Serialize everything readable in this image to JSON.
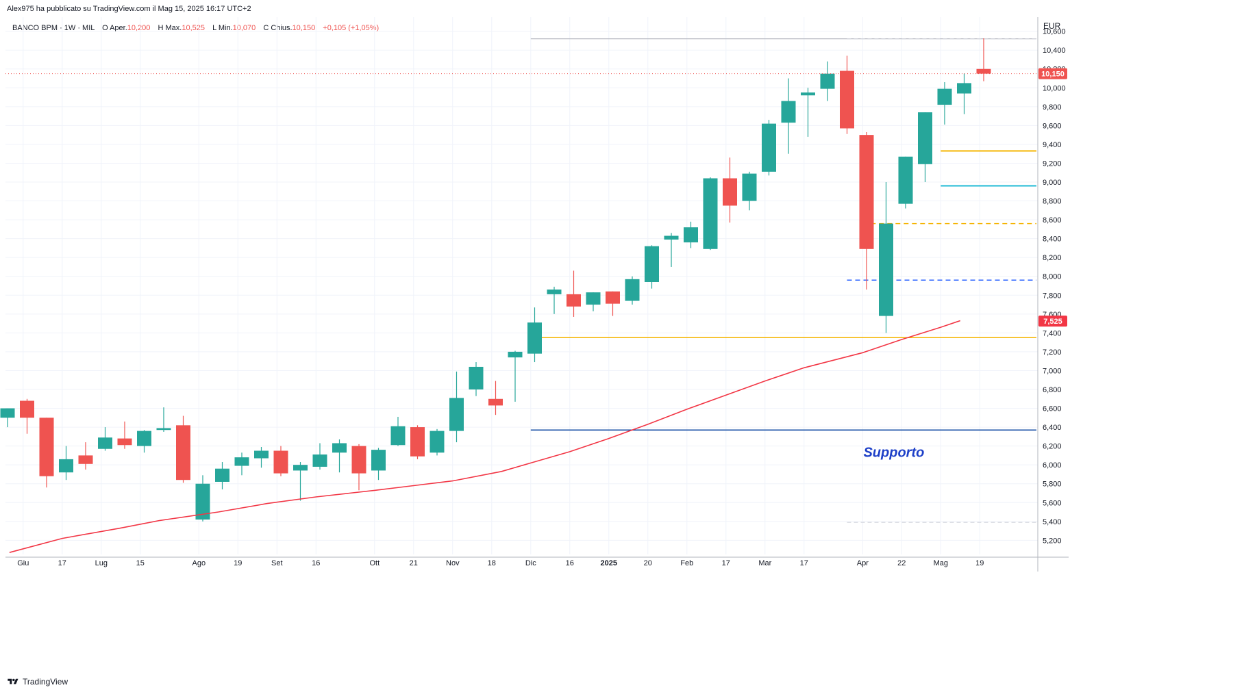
{
  "publication": "Alex975 ha pubblicato su TradingView.com il Mag 15, 2025 16:17 UTC+2",
  "legend": {
    "symbol": "BANCO BPM · 1W · MIL",
    "open_label": "O",
    "open_text": "Aper.",
    "open": "10,200",
    "high_label": "H",
    "high_text": "Max.",
    "high": "10,525",
    "low_label": "L",
    "low_text": "Min.",
    "low": "10,070",
    "close_label": "C",
    "close_text": "Chius.",
    "close": "10,150",
    "change": "+0,105 (+1,05%)"
  },
  "footer": {
    "brand": "TradingView"
  },
  "colors": {
    "up": "#26a69a",
    "down": "#ef5350",
    "ma": "#f23645",
    "grid": "#f0f3fa"
  },
  "chart_data": {
    "type": "candlestick",
    "currency": "EUR",
    "ylim": [
      5.05,
      10.75
    ],
    "y_ticks": [
      5.2,
      5.4,
      5.6,
      5.8,
      6.0,
      6.2,
      6.4,
      6.6,
      6.8,
      7.0,
      7.2,
      7.4,
      7.6,
      7.8,
      8.0,
      8.2,
      8.4,
      8.6,
      8.8,
      9.0,
      9.2,
      9.4,
      9.6,
      9.8,
      10.0,
      10.2,
      10.4,
      10.6
    ],
    "y_tick_labels": [
      "5,200",
      "5,400",
      "5,600",
      "5,800",
      "6,000",
      "6,200",
      "6,400",
      "6,600",
      "6,800",
      "7,000",
      "7,200",
      "7,400",
      "7,600",
      "7,800",
      "8,000",
      "8,200",
      "8,400",
      "8,600",
      "8,800",
      "9,000",
      "9,200",
      "9,400",
      "9,600",
      "9,800",
      "10,000",
      "10,200",
      "10,400",
      "10,600"
    ],
    "x_ticks": [
      {
        "i": 0.8,
        "label": "Giu"
      },
      {
        "i": 2.8,
        "label": "17"
      },
      {
        "i": 4.8,
        "label": "Lug"
      },
      {
        "i": 6.8,
        "label": "15"
      },
      {
        "i": 9.8,
        "label": "Ago"
      },
      {
        "i": 11.8,
        "label": "19"
      },
      {
        "i": 13.8,
        "label": "Set"
      },
      {
        "i": 15.8,
        "label": "16"
      },
      {
        "i": 18.8,
        "label": "Ott"
      },
      {
        "i": 20.8,
        "label": "21"
      },
      {
        "i": 22.8,
        "label": "Nov"
      },
      {
        "i": 24.8,
        "label": "18"
      },
      {
        "i": 26.8,
        "label": "Dic"
      },
      {
        "i": 28.8,
        "label": "16"
      },
      {
        "i": 30.8,
        "label": "2025",
        "bold": true
      },
      {
        "i": 32.8,
        "label": "20"
      },
      {
        "i": 34.8,
        "label": "Feb"
      },
      {
        "i": 36.8,
        "label": "17"
      },
      {
        "i": 38.8,
        "label": "Mar"
      },
      {
        "i": 40.8,
        "label": "17"
      },
      {
        "i": 43.8,
        "label": "Apr"
      },
      {
        "i": 45.8,
        "label": "22"
      },
      {
        "i": 47.8,
        "label": "Mag"
      },
      {
        "i": 49.8,
        "label": "19"
      }
    ],
    "candles": [
      {
        "o": 6.5,
        "h": 6.6,
        "l": 6.4,
        "c": 6.6
      },
      {
        "o": 6.68,
        "h": 6.7,
        "l": 6.33,
        "c": 6.5
      },
      {
        "o": 6.5,
        "h": 6.5,
        "l": 5.76,
        "c": 5.88
      },
      {
        "o": 5.92,
        "h": 6.2,
        "l": 5.84,
        "c": 6.06
      },
      {
        "o": 6.1,
        "h": 6.24,
        "l": 5.95,
        "c": 6.01
      },
      {
        "o": 6.17,
        "h": 6.4,
        "l": 6.15,
        "c": 6.29
      },
      {
        "o": 6.28,
        "h": 6.46,
        "l": 6.17,
        "c": 6.21
      },
      {
        "o": 6.2,
        "h": 6.37,
        "l": 6.13,
        "c": 6.36
      },
      {
        "o": 6.37,
        "h": 6.61,
        "l": 6.35,
        "c": 6.39
      },
      {
        "o": 6.42,
        "h": 6.52,
        "l": 5.81,
        "c": 5.84
      },
      {
        "o": 5.42,
        "h": 5.89,
        "l": 5.4,
        "c": 5.8
      },
      {
        "o": 5.82,
        "h": 6.03,
        "l": 5.74,
        "c": 5.96
      },
      {
        "o": 5.99,
        "h": 6.13,
        "l": 5.89,
        "c": 6.08
      },
      {
        "o": 6.07,
        "h": 6.19,
        "l": 5.97,
        "c": 6.15
      },
      {
        "o": 6.15,
        "h": 6.2,
        "l": 5.88,
        "c": 5.91
      },
      {
        "o": 5.94,
        "h": 6.03,
        "l": 5.62,
        "c": 6.0
      },
      {
        "o": 5.98,
        "h": 6.23,
        "l": 5.95,
        "c": 6.11
      },
      {
        "o": 6.13,
        "h": 6.27,
        "l": 5.92,
        "c": 6.23
      },
      {
        "o": 6.2,
        "h": 6.22,
        "l": 5.73,
        "c": 5.91
      },
      {
        "o": 5.94,
        "h": 6.18,
        "l": 5.84,
        "c": 6.16
      },
      {
        "o": 6.21,
        "h": 6.51,
        "l": 6.2,
        "c": 6.41
      },
      {
        "o": 6.4,
        "h": 6.42,
        "l": 6.06,
        "c": 6.09
      },
      {
        "o": 6.13,
        "h": 6.38,
        "l": 6.1,
        "c": 6.36
      },
      {
        "o": 6.36,
        "h": 6.99,
        "l": 6.24,
        "c": 6.71
      },
      {
        "o": 6.8,
        "h": 7.09,
        "l": 6.73,
        "c": 7.04
      },
      {
        "o": 6.7,
        "h": 6.89,
        "l": 6.53,
        "c": 6.63
      },
      {
        "o": 7.14,
        "h": 7.21,
        "l": 6.67,
        "c": 7.2
      },
      {
        "o": 7.18,
        "h": 7.67,
        "l": 7.09,
        "c": 7.51
      },
      {
        "o": 7.81,
        "h": 7.89,
        "l": 7.6,
        "c": 7.86
      },
      {
        "o": 7.81,
        "h": 8.06,
        "l": 7.57,
        "c": 7.68
      },
      {
        "o": 7.7,
        "h": 7.83,
        "l": 7.63,
        "c": 7.83
      },
      {
        "o": 7.84,
        "h": 7.84,
        "l": 7.58,
        "c": 7.71
      },
      {
        "o": 7.74,
        "h": 8.0,
        "l": 7.7,
        "c": 7.97
      },
      {
        "o": 7.94,
        "h": 8.33,
        "l": 7.87,
        "c": 8.32
      },
      {
        "o": 8.39,
        "h": 8.46,
        "l": 8.1,
        "c": 8.43
      },
      {
        "o": 8.36,
        "h": 8.58,
        "l": 8.3,
        "c": 8.52
      },
      {
        "o": 8.29,
        "h": 9.05,
        "l": 8.28,
        "c": 9.04
      },
      {
        "o": 9.04,
        "h": 9.26,
        "l": 8.57,
        "c": 8.75
      },
      {
        "o": 8.8,
        "h": 9.11,
        "l": 8.7,
        "c": 9.09
      },
      {
        "o": 9.11,
        "h": 9.66,
        "l": 9.07,
        "c": 9.62
      },
      {
        "o": 9.63,
        "h": 10.1,
        "l": 9.3,
        "c": 9.86
      },
      {
        "o": 9.92,
        "h": 10.0,
        "l": 9.48,
        "c": 9.95
      },
      {
        "o": 9.99,
        "h": 10.28,
        "l": 9.86,
        "c": 10.15
      },
      {
        "o": 10.18,
        "h": 10.34,
        "l": 9.51,
        "c": 9.57
      },
      {
        "o": 9.5,
        "h": 9.53,
        "l": 7.86,
        "c": 8.29
      },
      {
        "o": 7.58,
        "h": 9.0,
        "l": 7.4,
        "c": 8.56
      },
      {
        "o": 8.77,
        "h": 9.27,
        "l": 8.72,
        "c": 9.27
      },
      {
        "o": 9.19,
        "h": 9.74,
        "l": 9.0,
        "c": 9.74
      },
      {
        "o": 9.82,
        "h": 10.06,
        "l": 9.61,
        "c": 9.99
      },
      {
        "o": 9.94,
        "h": 10.15,
        "l": 9.72,
        "c": 10.05
      },
      {
        "o": 10.2,
        "h": 10.525,
        "l": 10.07,
        "c": 10.15
      }
    ],
    "moving_average": [
      {
        "i": 0.1,
        "v": 5.07
      },
      {
        "i": 2.8,
        "v": 5.22
      },
      {
        "i": 5.8,
        "v": 5.33
      },
      {
        "i": 7.8,
        "v": 5.41
      },
      {
        "i": 10.8,
        "v": 5.5
      },
      {
        "i": 13.3,
        "v": 5.59
      },
      {
        "i": 15.8,
        "v": 5.66
      },
      {
        "i": 18.8,
        "v": 5.73
      },
      {
        "i": 20.8,
        "v": 5.78
      },
      {
        "i": 22.8,
        "v": 5.83
      },
      {
        "i": 25.3,
        "v": 5.93
      },
      {
        "i": 26.8,
        "v": 6.02
      },
      {
        "i": 28.8,
        "v": 6.14
      },
      {
        "i": 30.8,
        "v": 6.28
      },
      {
        "i": 32.8,
        "v": 6.43
      },
      {
        "i": 34.8,
        "v": 6.59
      },
      {
        "i": 36.8,
        "v": 6.74
      },
      {
        "i": 38.8,
        "v": 6.89
      },
      {
        "i": 40.8,
        "v": 7.03
      },
      {
        "i": 42.3,
        "v": 7.11
      },
      {
        "i": 43.8,
        "v": 7.19
      },
      {
        "i": 45.8,
        "v": 7.33
      },
      {
        "i": 47.8,
        "v": 7.46
      },
      {
        "i": 48.8,
        "v": 7.53
      }
    ],
    "levels": [
      {
        "price": 10.52,
        "from_i": 26.8,
        "color": "#b2b5be",
        "width": 1.2,
        "dash": ""
      },
      {
        "price": 10.52,
        "from_i": 43.0,
        "color": "#d1d4dc",
        "width": 1.2,
        "dash": "6,4"
      },
      {
        "price": 9.33,
        "from_i": 47.8,
        "color": "#f5b400",
        "width": 2,
        "dash": ""
      },
      {
        "price": 8.96,
        "from_i": 47.8,
        "color": "#1fbad6",
        "width": 2,
        "dash": ""
      },
      {
        "price": 8.56,
        "from_i": 43.8,
        "color": "#f5b400",
        "width": 1.5,
        "dash": "7,5"
      },
      {
        "price": 7.96,
        "from_i": 43.0,
        "color": "#2962ff",
        "width": 1.5,
        "dash": "7,5"
      },
      {
        "price": 7.35,
        "from_i": 26.8,
        "color": "#f5b400",
        "width": 1.5,
        "dash": ""
      },
      {
        "price": 6.37,
        "from_i": 26.8,
        "color": "#0d47a1",
        "width": 1.5,
        "dash": ""
      },
      {
        "price": 5.39,
        "from_i": 43.0,
        "color": "#d1d4dc",
        "width": 1.2,
        "dash": "6,4"
      }
    ],
    "last_price": {
      "value": 10.15,
      "label": "10,150"
    },
    "ma_price": {
      "value": 7.525,
      "label": "7,525"
    },
    "annotation": {
      "text": "Supporto",
      "price": 6.13,
      "i": 45.4
    }
  }
}
